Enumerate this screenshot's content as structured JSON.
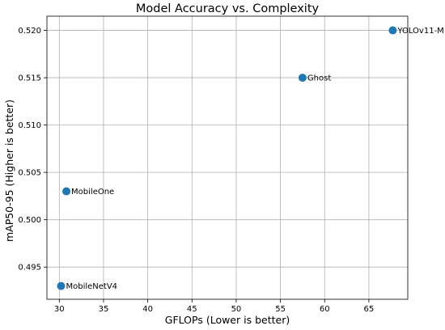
{
  "chart_data": {
    "type": "scatter",
    "title": "Model Accuracy vs. Complexity",
    "xlabel": "GFLOPs (Lower is better)",
    "ylabel": "mAP50-95 (Higher is better)",
    "xlim": [
      28.6,
      69.4
    ],
    "ylim": [
      0.4916,
      0.5215
    ],
    "xticks": [
      30,
      35,
      40,
      45,
      50,
      55,
      60,
      65
    ],
    "yticks": [
      0.495,
      0.5,
      0.505,
      0.51,
      0.515,
      0.52
    ],
    "ytick_labels": [
      "0.495",
      "0.500",
      "0.505",
      "0.510",
      "0.515",
      "0.520"
    ],
    "grid": true,
    "points": [
      {
        "label": "MobileNetV4",
        "x": 30.2,
        "y": 0.493
      },
      {
        "label": "MobileOne",
        "x": 30.8,
        "y": 0.503
      },
      {
        "label": "Ghost",
        "x": 57.5,
        "y": 0.515
      },
      {
        "label": "YOLOv11-M",
        "x": 67.7,
        "y": 0.52
      }
    ],
    "marker_color": "#1f77b4"
  }
}
